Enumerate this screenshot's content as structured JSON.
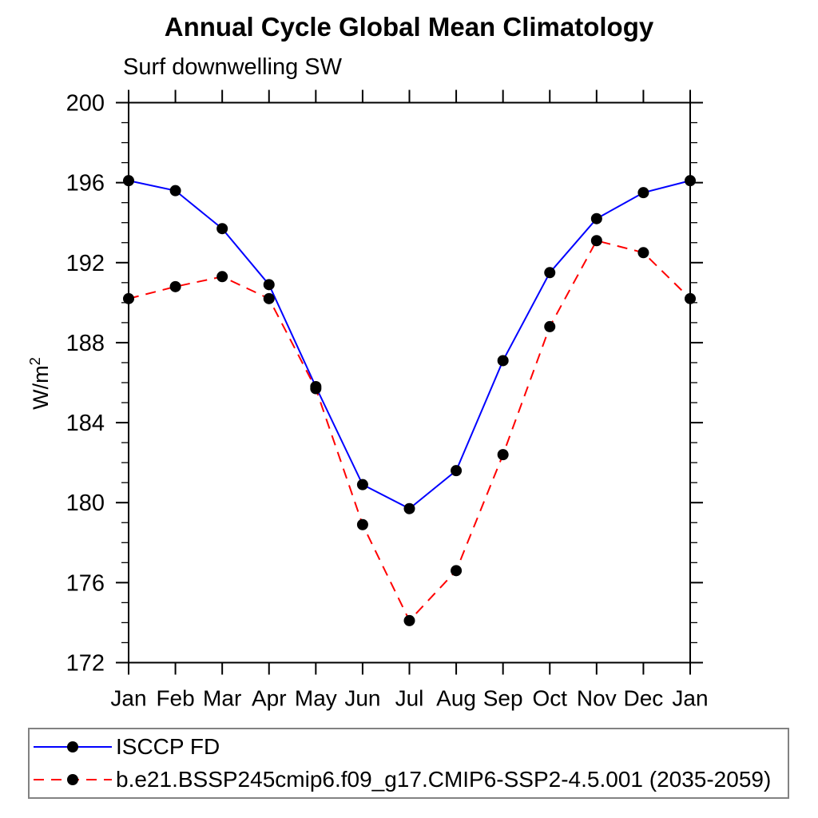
{
  "figure": {
    "background": "#ffffff",
    "axis_color": "#000000",
    "legend_border_color": "#828282"
  },
  "chart_data": {
    "type": "line",
    "title": "Annual Cycle Global Mean Climatology",
    "subtitle": "Surf downwelling SW",
    "ylabel": "W/m²",
    "ylabel_base": "W/m",
    "ylabel_sup": "2",
    "categories": [
      "Jan",
      "Feb",
      "Mar",
      "Apr",
      "May",
      "Jun",
      "Jul",
      "Aug",
      "Sep",
      "Oct",
      "Nov",
      "Dec",
      "Jan"
    ],
    "ylim": [
      172,
      200
    ],
    "ytick_major_step": 4,
    "ytick_minor_step": 1,
    "ytick_labels": [
      "172",
      "176",
      "180",
      "184",
      "188",
      "192",
      "196",
      "200"
    ],
    "grid": false,
    "legend_position": "bottom",
    "series": [
      {
        "name": "ISCCP FD",
        "line_color": "#0000ff",
        "line_style": "solid",
        "marker": "filled-circle",
        "marker_color": "#000000",
        "values": [
          196.1,
          195.6,
          193.7,
          190.9,
          185.8,
          180.9,
          179.7,
          181.6,
          187.1,
          191.5,
          194.2,
          195.5,
          196.1
        ]
      },
      {
        "name": "b.e21.BSSP245cmip6.f09_g17.CMIP6-SSP2-4.5.001 (2035-2059)",
        "line_color": "#ff0000",
        "line_style": "dashed",
        "marker": "filled-circle",
        "marker_color": "#000000",
        "values": [
          190.2,
          190.8,
          191.3,
          190.2,
          185.7,
          178.9,
          174.1,
          176.6,
          182.4,
          188.8,
          193.1,
          192.5,
          190.2
        ]
      }
    ]
  }
}
